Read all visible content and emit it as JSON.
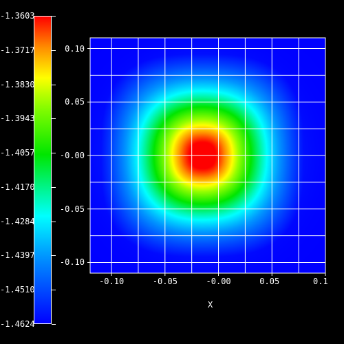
{
  "chart_data": {
    "type": "heatmap",
    "xlabel": "X",
    "ylabel": "",
    "title": "",
    "xlim": [
      -0.12,
      0.1
    ],
    "ylim": [
      -0.11,
      0.11
    ],
    "x_ticks": [
      -0.1,
      -0.05,
      -0.0,
      0.05,
      0.1
    ],
    "x_tick_labels": [
      "-0.10",
      "-0.05",
      "-0.00",
      "0.05",
      "0.1"
    ],
    "y_ticks": [
      0.1,
      0.05,
      -0.0,
      -0.05,
      -0.1
    ],
    "y_tick_labels": [
      "0.10",
      "0.05",
      "-0.00",
      "-0.05",
      "-0.10"
    ],
    "grid": true,
    "colormap": "rainbow (blue-cyan-green-yellow-red)",
    "colorbar": {
      "min": -1.4624,
      "max": -1.3603,
      "labels": [
        "-1.3603",
        "-1.3717",
        "-1.3830",
        "-1.3943",
        "-1.4057",
        "-1.4170",
        "-1.4284",
        "-1.4397",
        "-1.4510",
        "-1.4624"
      ]
    },
    "field": {
      "peak_value": -1.3603,
      "peak_x": -0.015,
      "peak_y": 0.0,
      "edge_value": -1.4624
    }
  }
}
